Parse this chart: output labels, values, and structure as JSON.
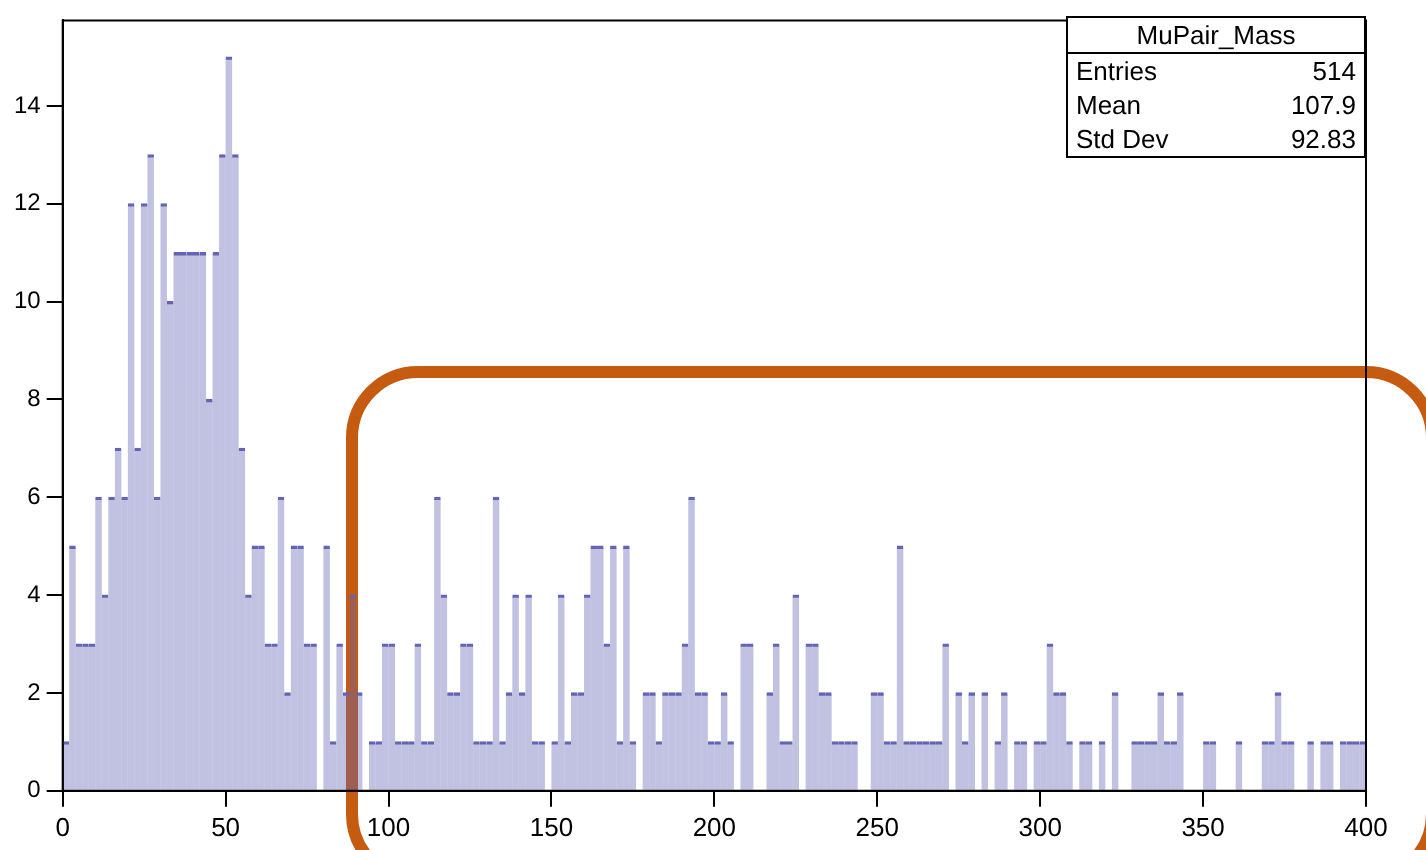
{
  "chart_data": {
    "type": "histogram",
    "bins": [
      0,
      2,
      4,
      6,
      8,
      10,
      12,
      14,
      16,
      18,
      20,
      22,
      24,
      26,
      28,
      30,
      32,
      34,
      36,
      38,
      40,
      42,
      44,
      46,
      48,
      50,
      52,
      54,
      56,
      58,
      60,
      62,
      64,
      66,
      68,
      70,
      72,
      74,
      76,
      78,
      80,
      82,
      84,
      86,
      88,
      90,
      92,
      94,
      96,
      98,
      100,
      102,
      104,
      106,
      108,
      110,
      112,
      114,
      116,
      118,
      120,
      122,
      124,
      126,
      128,
      130,
      132,
      134,
      136,
      138,
      140,
      142,
      144,
      146,
      148,
      150,
      152,
      154,
      156,
      158,
      160,
      162,
      164,
      166,
      168,
      170,
      172,
      174,
      176,
      178,
      180,
      182,
      184,
      186,
      188,
      190,
      192,
      194,
      196,
      198,
      200,
      202,
      204,
      206,
      208,
      210,
      212,
      214,
      216,
      218,
      220,
      222,
      224,
      226,
      228,
      230,
      232,
      234,
      236,
      238,
      240,
      242,
      244,
      246,
      248,
      250,
      252,
      254,
      256,
      258,
      260,
      262,
      264,
      266,
      268,
      270,
      272,
      274,
      276,
      278,
      280,
      282,
      284,
      286,
      288,
      290,
      292,
      294,
      296,
      298,
      300,
      302,
      304,
      306,
      308,
      310,
      312,
      314,
      316,
      318,
      320,
      322,
      324,
      326,
      328,
      330,
      332,
      334,
      336,
      338,
      340,
      342,
      344,
      346,
      348,
      350,
      352,
      354,
      356,
      358,
      360,
      362,
      364,
      366,
      368,
      370,
      372,
      374,
      376,
      378,
      380,
      382,
      384,
      386,
      388,
      390,
      392,
      394,
      396,
      398,
      400
    ],
    "values": [
      1,
      5,
      3,
      3,
      3,
      6,
      4,
      6,
      7,
      6,
      12,
      7,
      12,
      13,
      6,
      12,
      10,
      11,
      11,
      11,
      11,
      11,
      8,
      11,
      13,
      15,
      13,
      7,
      4,
      5,
      5,
      3,
      3,
      6,
      2,
      5,
      5,
      3,
      3,
      0,
      5,
      1,
      3,
      2,
      4,
      2,
      0,
      1,
      1,
      3,
      3,
      1,
      1,
      1,
      3,
      1,
      1,
      6,
      4,
      2,
      2,
      3,
      3,
      1,
      1,
      1,
      6,
      1,
      2,
      4,
      2,
      4,
      1,
      1,
      0,
      1,
      4,
      1,
      2,
      2,
      4,
      5,
      5,
      3,
      5,
      1,
      5,
      1,
      0,
      2,
      2,
      1,
      2,
      2,
      2,
      3,
      6,
      2,
      2,
      1,
      1,
      2,
      1,
      0,
      3,
      3,
      0,
      0,
      2,
      3,
      1,
      1,
      4,
      0,
      3,
      3,
      2,
      2,
      1,
      1,
      1,
      1,
      0,
      0,
      2,
      2,
      1,
      1,
      5,
      1,
      1,
      1,
      1,
      1,
      1,
      3,
      0,
      2,
      1,
      2,
      0,
      2,
      0,
      1,
      2,
      0,
      1,
      1,
      0,
      1,
      1,
      3,
      2,
      2,
      1,
      0,
      1,
      1,
      0,
      1,
      0,
      2,
      0,
      0,
      1,
      1,
      1,
      1,
      2,
      1,
      1,
      2,
      0,
      0,
      0,
      1,
      1,
      0,
      0,
      0,
      1,
      0,
      0,
      0,
      1,
      1,
      2,
      1,
      1,
      0,
      0,
      1,
      0,
      1,
      1,
      0,
      1,
      1,
      1,
      1
    ],
    "color": "#6464b4",
    "xlim": [
      0,
      400
    ],
    "xticks": [
      0,
      50,
      100,
      150,
      200,
      250,
      300,
      350,
      400
    ],
    "ylim": [
      0,
      15.75
    ],
    "yticks": [
      0,
      2,
      4,
      6,
      8,
      10,
      12,
      14
    ],
    "grid": false,
    "legend": false,
    "annotations": [
      "MuPair_Mass",
      "Entries",
      "514",
      "Mean",
      "107.9",
      "Std Dev",
      "92.83"
    ]
  }
}
